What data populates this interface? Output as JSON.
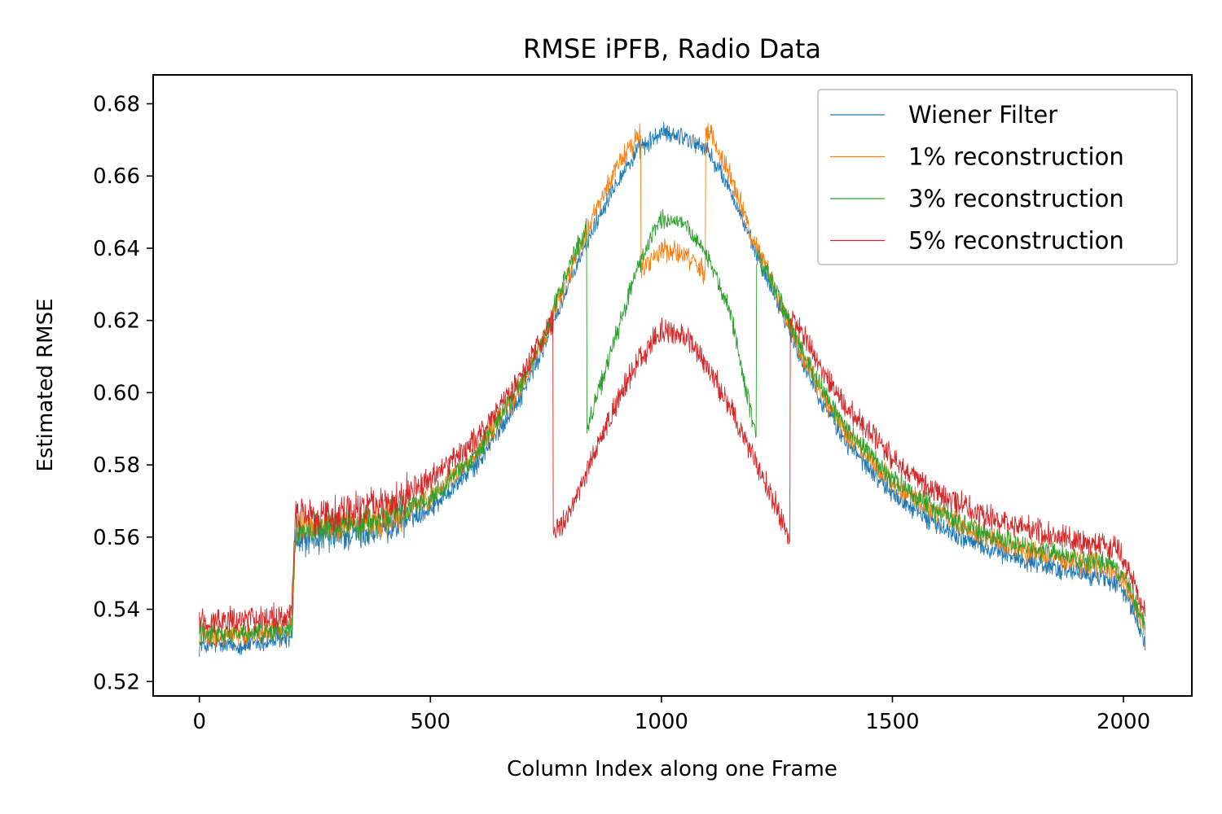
{
  "chart_data": {
    "type": "line",
    "title": "RMSE iPFB, Radio Data",
    "xlabel": "Column Index along one Frame",
    "ylabel": "Estimated RMSE",
    "xlim": [
      -100,
      2148
    ],
    "ylim": [
      0.516,
      0.688
    ],
    "xticks": [
      0,
      500,
      1000,
      1500,
      2000
    ],
    "yticks": [
      0.52,
      0.54,
      0.56,
      0.58,
      0.6,
      0.62,
      0.64,
      0.66,
      0.68
    ],
    "ytick_labels": [
      "0.52",
      "0.54",
      "0.56",
      "0.58",
      "0.60",
      "0.62",
      "0.64",
      "0.66",
      "0.68"
    ],
    "grid": false,
    "legend_position": "top-right",
    "x_domain": [
      0,
      2047
    ],
    "series": [
      {
        "name": "Wiener Filter",
        "color": "#1f77b4",
        "noise": 0.0022,
        "points": [
          [
            0,
            0.53
          ],
          [
            100,
            0.53
          ],
          [
            200,
            0.532
          ],
          [
            208,
            0.559
          ],
          [
            300,
            0.56
          ],
          [
            400,
            0.562
          ],
          [
            500,
            0.568
          ],
          [
            600,
            0.58
          ],
          [
            700,
            0.6
          ],
          [
            750,
            0.614
          ],
          [
            800,
            0.63
          ],
          [
            850,
            0.645
          ],
          [
            900,
            0.658
          ],
          [
            950,
            0.667
          ],
          [
            1000,
            0.672
          ],
          [
            1050,
            0.671
          ],
          [
            1100,
            0.667
          ],
          [
            1150,
            0.656
          ],
          [
            1200,
            0.64
          ],
          [
            1250,
            0.626
          ],
          [
            1300,
            0.61
          ],
          [
            1350,
            0.597
          ],
          [
            1400,
            0.586
          ],
          [
            1500,
            0.572
          ],
          [
            1600,
            0.563
          ],
          [
            1700,
            0.557
          ],
          [
            1800,
            0.553
          ],
          [
            1900,
            0.55
          ],
          [
            1950,
            0.549
          ],
          [
            1990,
            0.547
          ],
          [
            2020,
            0.54
          ],
          [
            2047,
            0.53
          ]
        ]
      },
      {
        "name": "1% reconstruction",
        "color": "#ff7f0e",
        "noise": 0.0025,
        "points": [
          [
            0,
            0.533
          ],
          [
            100,
            0.533
          ],
          [
            200,
            0.535
          ],
          [
            208,
            0.562
          ],
          [
            300,
            0.563
          ],
          [
            400,
            0.565
          ],
          [
            500,
            0.571
          ],
          [
            600,
            0.583
          ],
          [
            700,
            0.603
          ],
          [
            750,
            0.616
          ],
          [
            800,
            0.633
          ],
          [
            850,
            0.648
          ],
          [
            900,
            0.662
          ],
          [
            955,
            0.672
          ],
          [
            956,
            0.634
          ],
          [
            1000,
            0.64
          ],
          [
            1050,
            0.638
          ],
          [
            1095,
            0.633
          ],
          [
            1096,
            0.674
          ],
          [
            1150,
            0.66
          ],
          [
            1200,
            0.642
          ],
          [
            1250,
            0.628
          ],
          [
            1300,
            0.612
          ],
          [
            1350,
            0.599
          ],
          [
            1400,
            0.589
          ],
          [
            1500,
            0.575
          ],
          [
            1600,
            0.566
          ],
          [
            1700,
            0.56
          ],
          [
            1800,
            0.556
          ],
          [
            1900,
            0.553
          ],
          [
            1950,
            0.552
          ],
          [
            1990,
            0.55
          ],
          [
            2020,
            0.543
          ],
          [
            2047,
            0.534
          ]
        ]
      },
      {
        "name": "3% reconstruction",
        "color": "#2ca02c",
        "noise": 0.0023,
        "points": [
          [
            0,
            0.533
          ],
          [
            100,
            0.533
          ],
          [
            200,
            0.535
          ],
          [
            208,
            0.562
          ],
          [
            300,
            0.563
          ],
          [
            400,
            0.565
          ],
          [
            500,
            0.571
          ],
          [
            600,
            0.583
          ],
          [
            700,
            0.603
          ],
          [
            750,
            0.617
          ],
          [
            800,
            0.635
          ],
          [
            838,
            0.646
          ],
          [
            839,
            0.59
          ],
          [
            900,
            0.615
          ],
          [
            950,
            0.635
          ],
          [
            1000,
            0.648
          ],
          [
            1050,
            0.647
          ],
          [
            1100,
            0.638
          ],
          [
            1150,
            0.622
          ],
          [
            1200,
            0.59
          ],
          [
            1205,
            0.588
          ],
          [
            1206,
            0.638
          ],
          [
            1250,
            0.628
          ],
          [
            1300,
            0.613
          ],
          [
            1350,
            0.6
          ],
          [
            1400,
            0.59
          ],
          [
            1500,
            0.576
          ],
          [
            1600,
            0.567
          ],
          [
            1700,
            0.561
          ],
          [
            1800,
            0.557
          ],
          [
            1900,
            0.554
          ],
          [
            1950,
            0.553
          ],
          [
            1990,
            0.551
          ],
          [
            2020,
            0.544
          ],
          [
            2047,
            0.535
          ]
        ]
      },
      {
        "name": "5% reconstruction",
        "color": "#d62728",
        "noise": 0.0028,
        "points": [
          [
            0,
            0.537
          ],
          [
            100,
            0.537
          ],
          [
            200,
            0.539
          ],
          [
            208,
            0.566
          ],
          [
            300,
            0.567
          ],
          [
            400,
            0.569
          ],
          [
            500,
            0.576
          ],
          [
            600,
            0.587
          ],
          [
            700,
            0.605
          ],
          [
            765,
            0.62
          ],
          [
            766,
            0.56
          ],
          [
            800,
            0.566
          ],
          [
            850,
            0.582
          ],
          [
            900,
            0.596
          ],
          [
            950,
            0.609
          ],
          [
            1000,
            0.617
          ],
          [
            1050,
            0.616
          ],
          [
            1100,
            0.607
          ],
          [
            1150,
            0.596
          ],
          [
            1200,
            0.582
          ],
          [
            1250,
            0.568
          ],
          [
            1278,
            0.559
          ],
          [
            1279,
            0.621
          ],
          [
            1300,
            0.618
          ],
          [
            1350,
            0.606
          ],
          [
            1400,
            0.596
          ],
          [
            1500,
            0.582
          ],
          [
            1600,
            0.572
          ],
          [
            1700,
            0.566
          ],
          [
            1800,
            0.562
          ],
          [
            1900,
            0.559
          ],
          [
            1950,
            0.558
          ],
          [
            1990,
            0.556
          ],
          [
            2020,
            0.548
          ],
          [
            2047,
            0.538
          ]
        ]
      }
    ]
  }
}
